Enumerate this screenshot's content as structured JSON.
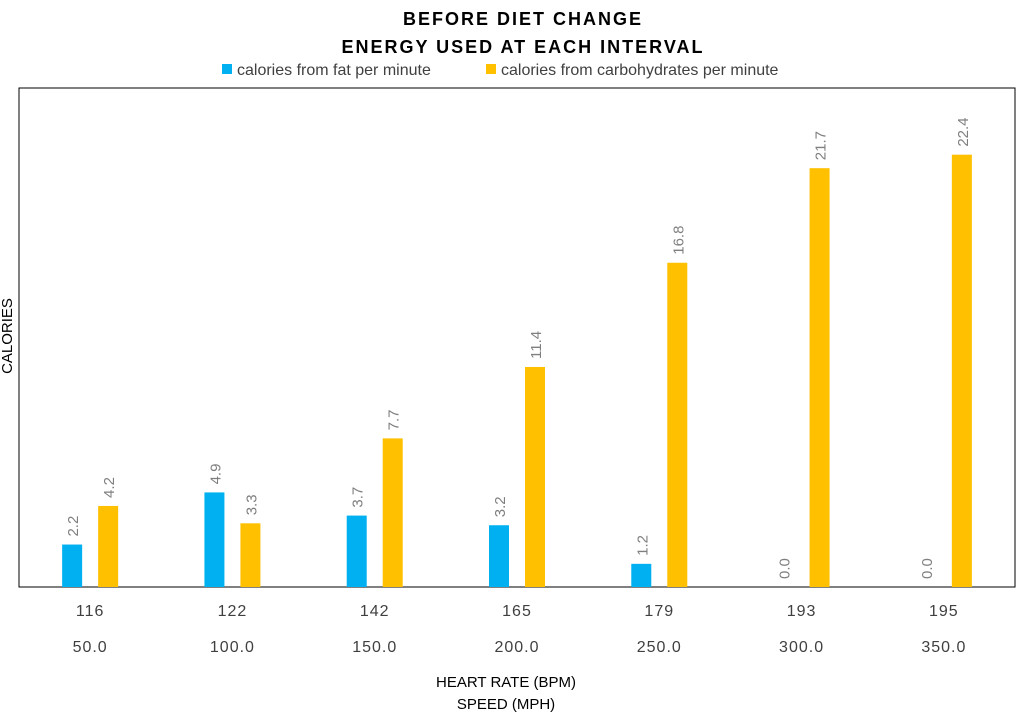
{
  "chart_data": {
    "type": "bar",
    "title": "BEFORE DIET CHANGE",
    "subtitle": "ENERGY USED AT EACH INTERVAL",
    "ylabel": "CALORIES",
    "xlabel_line1": "HEART RATE (BPM)",
    "xlabel_line2": "SPEED (MPH)",
    "categories": [
      "116",
      "122",
      "142",
      "165",
      "179",
      "193",
      "195"
    ],
    "categories_secondary": [
      "50.0",
      "100.0",
      "150.0",
      "200.0",
      "250.0",
      "300.0",
      "350.0"
    ],
    "ylim": [
      0,
      25
    ],
    "grid": false,
    "legend_position": "top",
    "series": [
      {
        "name": "calories from fat per minute",
        "color": "#00B0F0",
        "values": [
          2.2,
          4.9,
          3.7,
          3.2,
          1.2,
          0.0,
          0.0
        ],
        "labels": [
          "2.2",
          "4.9",
          "3.7",
          "3.2",
          "1.2",
          "0.0",
          "0.0"
        ]
      },
      {
        "name": "calories from carbohydrates per minute",
        "color": "#FFC000",
        "values": [
          4.2,
          3.3,
          7.7,
          11.4,
          16.8,
          21.7,
          22.4
        ],
        "labels": [
          "4.2",
          "3.3",
          "7.7",
          "11.4",
          "16.8",
          "21.7",
          "22.4"
        ]
      }
    ]
  }
}
